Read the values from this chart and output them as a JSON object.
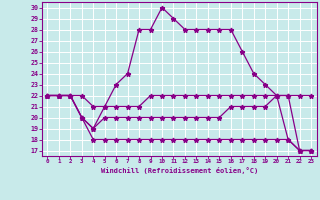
{
  "xlabel": "Windchill (Refroidissement éolien,°C)",
  "ylabel": "",
  "xlim": [
    -0.5,
    23.5
  ],
  "ylim": [
    16.5,
    30.5
  ],
  "xticks": [
    0,
    1,
    2,
    3,
    4,
    5,
    6,
    7,
    8,
    9,
    10,
    11,
    12,
    13,
    14,
    15,
    16,
    17,
    18,
    19,
    20,
    21,
    22,
    23
  ],
  "yticks": [
    17,
    18,
    19,
    20,
    21,
    22,
    23,
    24,
    25,
    26,
    27,
    28,
    29,
    30
  ],
  "bg_color": "#c8eaea",
  "grid_color": "#ffffff",
  "line_color": "#880088",
  "line2_x": [
    0,
    1,
    2,
    3,
    4,
    5,
    6,
    7,
    8,
    9,
    10,
    11,
    12,
    13,
    14,
    15,
    16,
    17,
    18,
    19,
    20,
    21,
    22,
    23
  ],
  "line2_y": [
    22,
    22,
    22,
    20,
    19,
    21,
    23,
    24,
    28,
    28,
    30,
    29,
    28,
    28,
    28,
    28,
    28,
    26,
    24,
    23,
    22,
    18,
    17,
    17
  ],
  "line1_x": [
    0,
    1,
    2,
    3,
    4,
    5,
    6,
    7,
    8,
    9,
    10,
    11,
    12,
    13,
    14,
    15,
    16,
    17,
    18,
    19,
    20,
    21,
    22,
    23
  ],
  "line1_y": [
    22,
    22,
    22,
    22,
    21,
    21,
    21,
    21,
    21,
    22,
    22,
    22,
    22,
    22,
    22,
    22,
    22,
    22,
    22,
    22,
    22,
    22,
    22,
    22
  ],
  "line3_x": [
    0,
    1,
    2,
    3,
    4,
    5,
    6,
    7,
    8,
    9,
    10,
    11,
    12,
    13,
    14,
    15,
    16,
    17,
    18,
    19,
    20,
    21,
    22,
    23
  ],
  "line3_y": [
    22,
    22,
    22,
    20,
    19,
    20,
    20,
    20,
    20,
    20,
    20,
    20,
    20,
    20,
    20,
    20,
    21,
    21,
    21,
    21,
    22,
    22,
    17,
    17
  ],
  "line4_x": [
    0,
    1,
    2,
    3,
    4,
    5,
    6,
    7,
    8,
    9,
    10,
    11,
    12,
    13,
    14,
    15,
    16,
    17,
    18,
    19,
    20,
    21,
    22,
    23
  ],
  "line4_y": [
    22,
    22,
    22,
    20,
    18,
    18,
    18,
    18,
    18,
    18,
    18,
    18,
    18,
    18,
    18,
    18,
    18,
    18,
    18,
    18,
    18,
    18,
    17,
    17
  ]
}
